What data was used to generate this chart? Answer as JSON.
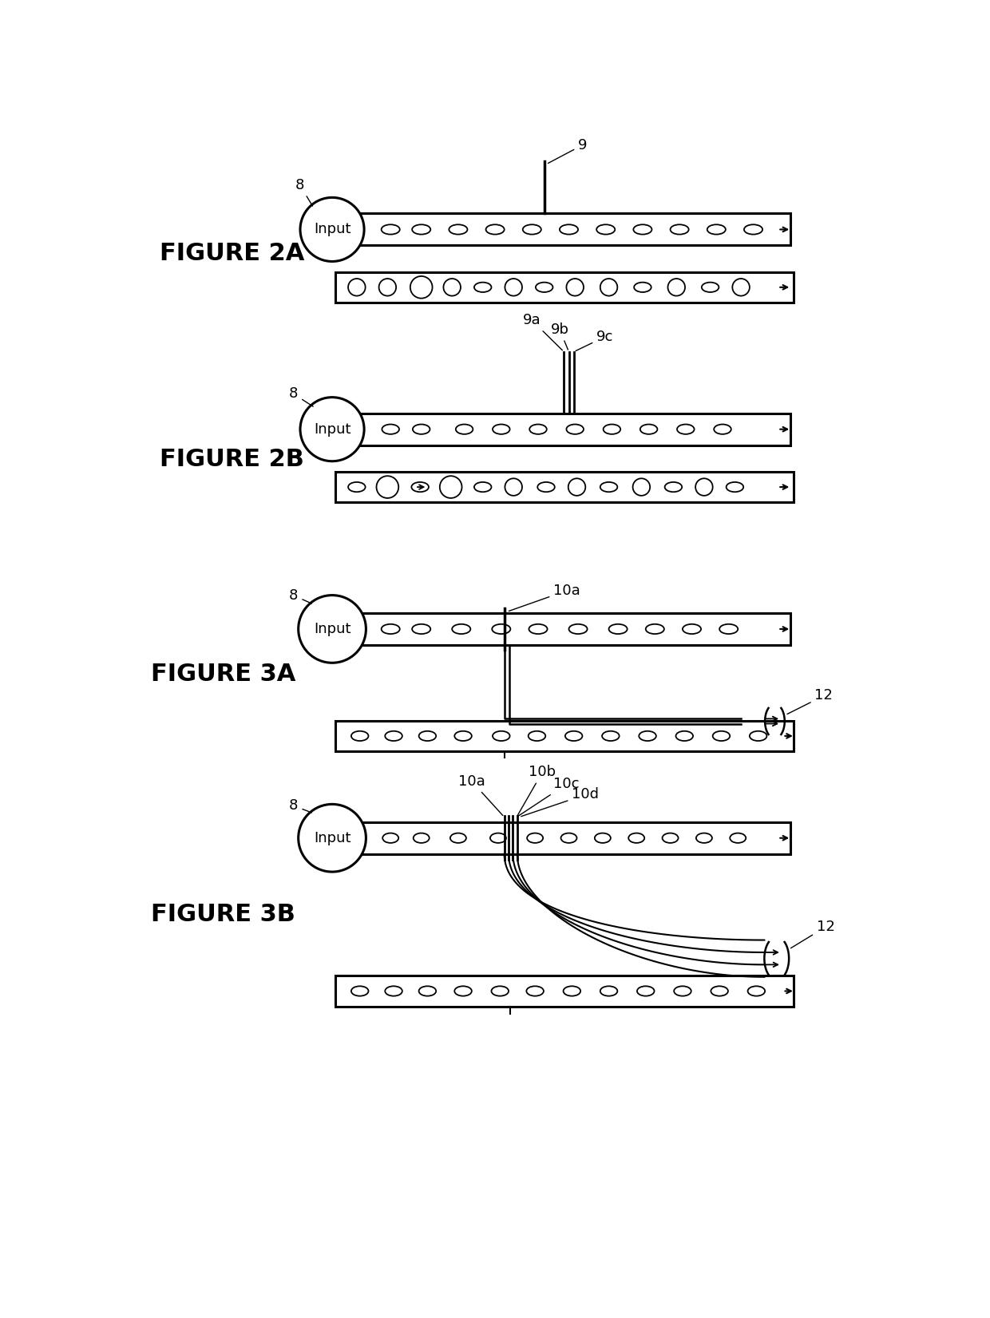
{
  "bg_color": "#ffffff",
  "line_color": "#000000",
  "figure_labels": [
    "FIGURE 2A",
    "FIGURE 2B",
    "FIGURE 3A",
    "FIGURE 3B"
  ],
  "figure_label_fontsize": 22,
  "annotation_fontsize": 13,
  "input_fontsize": 13,
  "fig_width": 12.4,
  "fig_height": 16.51,
  "dpi": 100
}
